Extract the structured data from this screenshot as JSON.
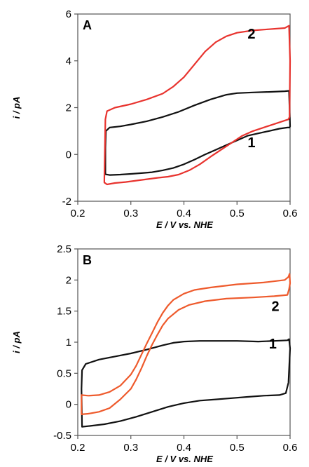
{
  "chart_data": [
    {
      "type": "line",
      "panel_label": "A",
      "xlabel": "E / V vs. NHE",
      "ylabel": "i / pA",
      "xlim": [
        0.2,
        0.6
      ],
      "ylim": [
        -2,
        6
      ],
      "xticks": [
        "0.2",
        "0.3",
        "0.4",
        "0.5",
        "0.6"
      ],
      "yticks": [
        "-2",
        "0",
        "2",
        "4",
        "6"
      ],
      "grid": false,
      "series": [
        {
          "label": "1",
          "color": "#111111",
          "x": [
            0.252,
            0.253,
            0.26,
            0.28,
            0.3,
            0.33,
            0.36,
            0.39,
            0.42,
            0.45,
            0.48,
            0.5,
            0.53,
            0.56,
            0.59,
            0.598,
            0.599,
            0.6,
            0.599,
            0.595,
            0.58,
            0.56,
            0.54,
            0.52,
            0.5,
            0.48,
            0.46,
            0.44,
            0.42,
            0.4,
            0.38,
            0.36,
            0.34,
            0.32,
            0.3,
            0.28,
            0.26,
            0.252
          ],
          "y": [
            0.3,
            1.0,
            1.15,
            1.2,
            1.28,
            1.42,
            1.6,
            1.82,
            2.1,
            2.35,
            2.55,
            2.62,
            2.65,
            2.67,
            2.7,
            2.72,
            2.0,
            1.2,
            1.15,
            1.15,
            1.1,
            1.0,
            0.9,
            0.8,
            0.6,
            0.4,
            0.2,
            0.0,
            -0.22,
            -0.42,
            -0.58,
            -0.68,
            -0.76,
            -0.8,
            -0.83,
            -0.86,
            -0.88,
            -0.85
          ],
          "annotation": {
            "text": "1",
            "x": 0.52,
            "y": 0.3
          }
        },
        {
          "label": "2",
          "color": "#e8332e",
          "x": [
            0.25,
            0.252,
            0.255,
            0.27,
            0.3,
            0.33,
            0.36,
            0.38,
            0.4,
            0.42,
            0.44,
            0.46,
            0.48,
            0.5,
            0.53,
            0.56,
            0.59,
            0.598,
            0.6,
            0.599,
            0.597,
            0.59,
            0.57,
            0.55,
            0.53,
            0.51,
            0.49,
            0.47,
            0.45,
            0.43,
            0.41,
            0.39,
            0.37,
            0.35,
            0.33,
            0.31,
            0.29,
            0.27,
            0.255,
            0.25
          ],
          "y": [
            -1.1,
            1.5,
            1.85,
            2.0,
            2.15,
            2.35,
            2.6,
            2.9,
            3.3,
            3.85,
            4.4,
            4.8,
            5.05,
            5.2,
            5.3,
            5.35,
            5.4,
            5.5,
            4.0,
            1.6,
            1.5,
            1.45,
            1.3,
            1.15,
            1.0,
            0.8,
            0.5,
            0.2,
            -0.1,
            -0.42,
            -0.68,
            -0.86,
            -0.95,
            -1.0,
            -1.06,
            -1.12,
            -1.18,
            -1.22,
            -1.28,
            -1.2
          ],
          "annotation": {
            "text": "2",
            "x": 0.52,
            "y": 4.95
          }
        }
      ]
    },
    {
      "type": "line",
      "panel_label": "B",
      "xlabel": "E / V vs. NHE",
      "ylabel": "i / pA",
      "xlim": [
        0.2,
        0.6
      ],
      "ylim": [
        -0.5,
        2.5
      ],
      "xticks": [
        "0.2",
        "0.3",
        "0.4",
        "0.5",
        "0.6"
      ],
      "yticks": [
        "-0.5",
        "0",
        "0.5",
        "1",
        "1.5",
        "2",
        "2.5"
      ],
      "grid": false,
      "series": [
        {
          "label": "1",
          "color": "#111111",
          "x": [
            0.207,
            0.208,
            0.215,
            0.24,
            0.27,
            0.3,
            0.33,
            0.36,
            0.38,
            0.4,
            0.43,
            0.46,
            0.5,
            0.54,
            0.57,
            0.595,
            0.598,
            0.6,
            0.597,
            0.592,
            0.58,
            0.55,
            0.52,
            0.49,
            0.46,
            0.43,
            0.4,
            0.37,
            0.34,
            0.31,
            0.28,
            0.25,
            0.22,
            0.208
          ],
          "y": [
            0.25,
            0.55,
            0.65,
            0.72,
            0.77,
            0.82,
            0.88,
            0.95,
            0.99,
            1.01,
            1.02,
            1.02,
            1.02,
            1.01,
            1.02,
            1.03,
            1.05,
            0.9,
            0.35,
            0.18,
            0.15,
            0.14,
            0.12,
            0.1,
            0.08,
            0.06,
            0.02,
            -0.04,
            -0.12,
            -0.2,
            -0.27,
            -0.32,
            -0.35,
            -0.36
          ],
          "annotation": {
            "text": "1",
            "x": 0.56,
            "y": 0.9
          }
        },
        {
          "label": "2",
          "color": "#ee5a2c",
          "x": [
            0.207,
            0.22,
            0.24,
            0.26,
            0.28,
            0.3,
            0.31,
            0.32,
            0.33,
            0.34,
            0.35,
            0.36,
            0.37,
            0.38,
            0.4,
            0.42,
            0.45,
            0.5,
            0.55,
            0.59,
            0.597,
            0.599,
            0.6,
            0.598,
            0.595,
            0.57,
            0.53,
            0.48,
            0.44,
            0.41,
            0.39,
            0.37,
            0.36,
            0.35,
            0.34,
            0.33,
            0.32,
            0.31,
            0.3,
            0.28,
            0.26,
            0.24,
            0.22,
            0.207
          ],
          "y": [
            0.15,
            0.14,
            0.15,
            0.2,
            0.3,
            0.48,
            0.62,
            0.8,
            0.98,
            1.15,
            1.32,
            1.47,
            1.59,
            1.68,
            1.78,
            1.84,
            1.88,
            1.93,
            1.96,
            2.0,
            2.05,
            2.1,
            1.95,
            1.85,
            1.76,
            1.74,
            1.72,
            1.7,
            1.66,
            1.6,
            1.52,
            1.38,
            1.27,
            1.12,
            0.96,
            0.78,
            0.58,
            0.4,
            0.25,
            0.08,
            -0.06,
            -0.12,
            -0.15,
            -0.16
          ],
          "annotation": {
            "text": "2",
            "x": 0.565,
            "y": 1.5
          }
        }
      ]
    }
  ]
}
